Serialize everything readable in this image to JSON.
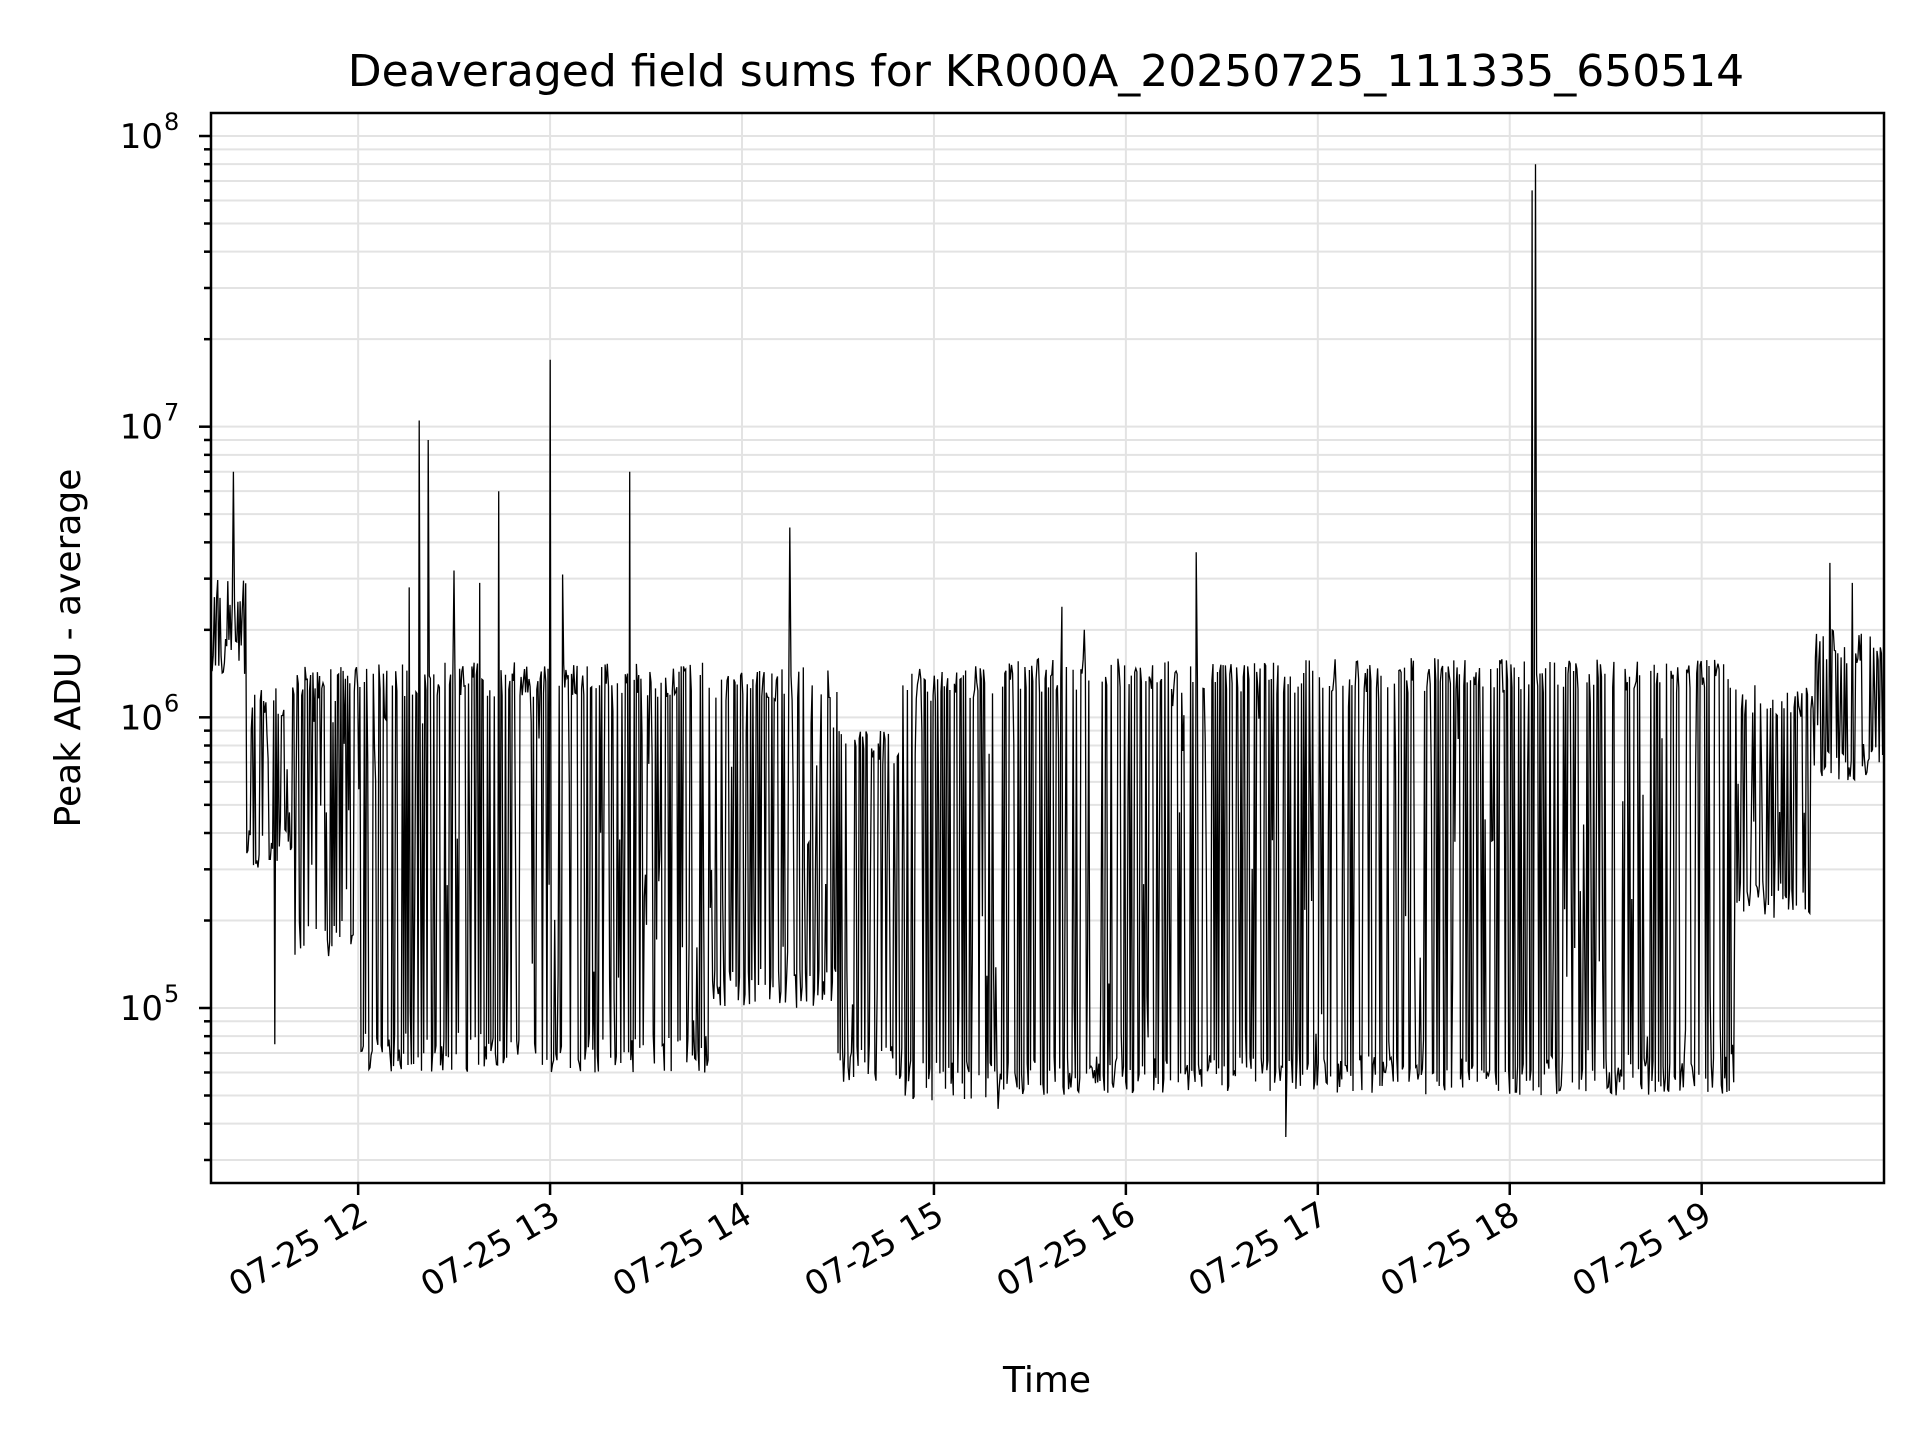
{
  "chart_data": {
    "type": "line",
    "title": "Deaveraged field sums for KR000A_20250725_111335_650514",
    "xlabel": "Time",
    "ylabel": "Peak ADU - average",
    "yscale": "log",
    "ylim": [
      25000,
      120000000
    ],
    "xlim": [
      "2025-07-25 11:14",
      "2025-07-25 19:57"
    ],
    "grid": true,
    "x_ticks": [
      {
        "t": "2025-07-25 12:00",
        "label": "07-25 12"
      },
      {
        "t": "2025-07-25 13:00",
        "label": "07-25 13"
      },
      {
        "t": "2025-07-25 14:00",
        "label": "07-25 14"
      },
      {
        "t": "2025-07-25 15:00",
        "label": "07-25 15"
      },
      {
        "t": "2025-07-25 16:00",
        "label": "07-25 16"
      },
      {
        "t": "2025-07-25 17:00",
        "label": "07-25 17"
      },
      {
        "t": "2025-07-25 18:00",
        "label": "07-25 18"
      },
      {
        "t": "2025-07-25 19:00",
        "label": "07-25 19"
      }
    ],
    "y_ticks": [
      {
        "value": 100000,
        "base": "10",
        "exp": "5"
      },
      {
        "value": 1000000,
        "base": "10",
        "exp": "6"
      },
      {
        "value": 10000000,
        "base": "10",
        "exp": "7"
      },
      {
        "value": 100000000,
        "base": "10",
        "exp": "8"
      }
    ],
    "series": [
      {
        "color": "#000000",
        "segments": [
          {
            "from": "2025-07-25 11:14",
            "to": "2025-07-25 11:25",
            "lo": 1400000,
            "hi": 3000000
          },
          {
            "from": "2025-07-25 11:25",
            "to": "2025-07-25 11:40",
            "lo": 300000,
            "hi": 1300000
          },
          {
            "from": "2025-07-25 11:40",
            "to": "2025-07-25 12:00",
            "lo": 150000,
            "hi": 1500000
          },
          {
            "from": "2025-07-25 12:00",
            "to": "2025-07-25 13:50",
            "lo": 60000,
            "hi": 1550000
          },
          {
            "from": "2025-07-25 13:50",
            "to": "2025-07-25 14:30",
            "lo": 100000,
            "hi": 1500000
          },
          {
            "from": "2025-07-25 14:30",
            "to": "2025-07-25 14:50",
            "lo": 55000,
            "hi": 900000
          },
          {
            "from": "2025-07-25 14:50",
            "to": "2025-07-25 15:20",
            "lo": 48000,
            "hi": 1500000
          },
          {
            "from": "2025-07-25 15:20",
            "to": "2025-07-25 19:10",
            "lo": 50000,
            "hi": 1600000
          },
          {
            "from": "2025-07-25 19:10",
            "to": "2025-07-25 19:35",
            "lo": 200000,
            "hi": 1300000
          },
          {
            "from": "2025-07-25 19:35",
            "to": "2025-07-25 19:57",
            "lo": 600000,
            "hi": 2000000
          }
        ],
        "spikes": [
          {
            "t": "2025-07-25 11:21",
            "value": 7000000
          },
          {
            "t": "2025-07-25 11:34",
            "value": 75000
          },
          {
            "t": "2025-07-25 12:16",
            "value": 2800000
          },
          {
            "t": "2025-07-25 12:19",
            "value": 10500000
          },
          {
            "t": "2025-07-25 12:22",
            "value": 9000000
          },
          {
            "t": "2025-07-25 12:30",
            "value": 3200000
          },
          {
            "t": "2025-07-25 12:38",
            "value": 2900000
          },
          {
            "t": "2025-07-25 12:44",
            "value": 6000000
          },
          {
            "t": "2025-07-25 13:00",
            "value": 17000000
          },
          {
            "t": "2025-07-25 13:04",
            "value": 3100000
          },
          {
            "t": "2025-07-25 13:25",
            "value": 7000000
          },
          {
            "t": "2025-07-25 14:15",
            "value": 4500000
          },
          {
            "t": "2025-07-25 15:20",
            "value": 45000
          },
          {
            "t": "2025-07-25 15:40",
            "value": 2400000
          },
          {
            "t": "2025-07-25 15:47",
            "value": 2000000
          },
          {
            "t": "2025-07-25 16:22",
            "value": 3700000
          },
          {
            "t": "2025-07-25 16:50",
            "value": 36000
          },
          {
            "t": "2025-07-25 18:07",
            "value": 65000000
          },
          {
            "t": "2025-07-25 18:08",
            "value": 80000000
          },
          {
            "t": "2025-07-25 19:40",
            "value": 3400000
          },
          {
            "t": "2025-07-25 19:47",
            "value": 2900000
          }
        ]
      }
    ]
  }
}
